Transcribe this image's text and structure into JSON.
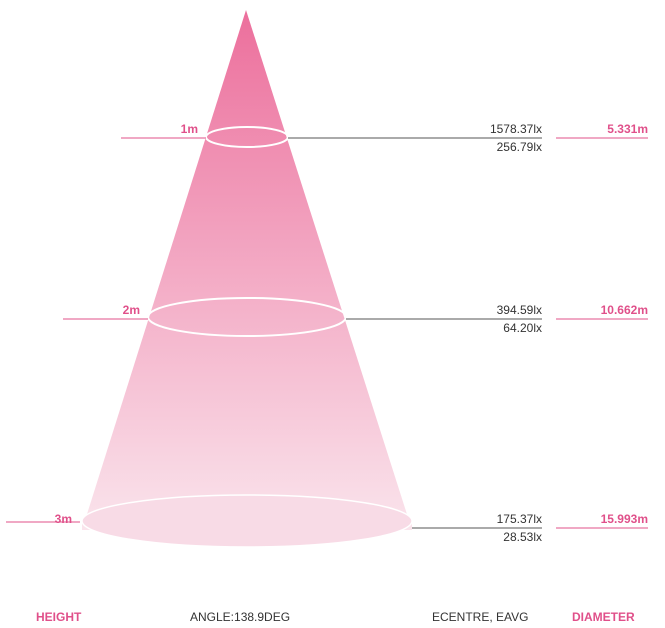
{
  "colors": {
    "accent": "#e0508a",
    "cone_top": "#ee7da5",
    "cone_bottom": "#f9dfe8",
    "leader_line": "#555555"
  },
  "levels": [
    {
      "height": "1m",
      "ecentre": "1578.37lx",
      "eavg": "256.79lx",
      "diameter": "5.331m"
    },
    {
      "height": "2m",
      "ecentre": "394.59lx",
      "eavg": "64.20lx",
      "diameter": "10.662m"
    },
    {
      "height": "3m",
      "ecentre": "175.37lx",
      "eavg": "28.53lx",
      "diameter": "15.993m"
    }
  ],
  "footer": {
    "height_label": "HEIGHT",
    "angle_label": "ANGLE:138.9DEG",
    "illuminance_label": "ECENTRE, EAVG",
    "diameter_label": "DIAMETER"
  }
}
